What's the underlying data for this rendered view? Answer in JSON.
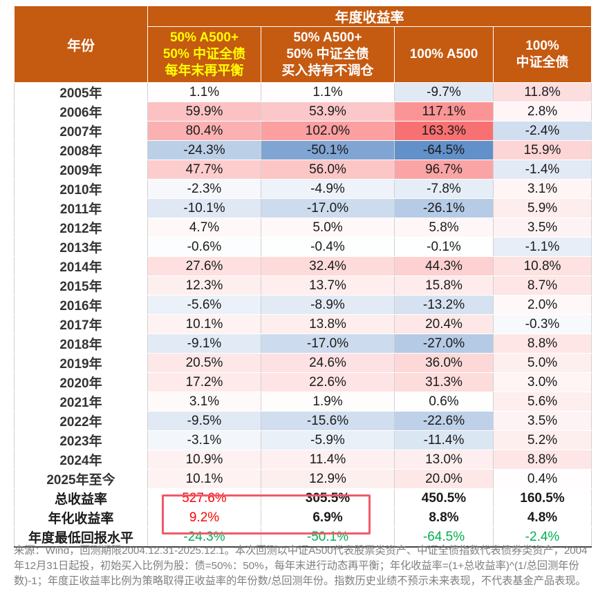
{
  "header": {
    "group_title": "年度收益率",
    "year_col": "年份",
    "columns": [
      {
        "lines": [
          "50% A500+",
          "50% 中证全债",
          "每年末再平衡"
        ]
      },
      {
        "lines": [
          "50% A500+",
          "50% 中证全债",
          "买入持有不调仓"
        ]
      },
      {
        "lines": [
          "100% A500"
        ]
      },
      {
        "lines": [
          "100%",
          "中证全债"
        ]
      }
    ]
  },
  "rows": [
    {
      "year": "2005年",
      "values": [
        "1.1%",
        "1.1%",
        "-9.7%",
        "11.8%"
      ]
    },
    {
      "year": "2006年",
      "values": [
        "59.9%",
        "53.9%",
        "117.1%",
        "2.8%"
      ]
    },
    {
      "year": "2007年",
      "values": [
        "80.4%",
        "102.0%",
        "163.3%",
        "-2.4%"
      ]
    },
    {
      "year": "2008年",
      "values": [
        "-24.3%",
        "-50.1%",
        "-64.5%",
        "15.9%"
      ]
    },
    {
      "year": "2009年",
      "values": [
        "47.7%",
        "56.0%",
        "96.7%",
        "-1.4%"
      ]
    },
    {
      "year": "2010年",
      "values": [
        "-2.3%",
        "-4.9%",
        "-7.8%",
        "3.1%"
      ]
    },
    {
      "year": "2011年",
      "values": [
        "-10.1%",
        "-17.0%",
        "-26.1%",
        "5.9%"
      ]
    },
    {
      "year": "2012年",
      "values": [
        "4.7%",
        "5.0%",
        "5.8%",
        "3.5%"
      ]
    },
    {
      "year": "2013年",
      "values": [
        "-0.6%",
        "-0.4%",
        "-0.1%",
        "-1.1%"
      ]
    },
    {
      "year": "2014年",
      "values": [
        "27.6%",
        "32.4%",
        "44.3%",
        "10.8%"
      ]
    },
    {
      "year": "2015年",
      "values": [
        "12.3%",
        "13.7%",
        "15.8%",
        "8.7%"
      ]
    },
    {
      "year": "2016年",
      "values": [
        "-5.6%",
        "-8.9%",
        "-13.2%",
        "2.0%"
      ]
    },
    {
      "year": "2017年",
      "values": [
        "10.1%",
        "13.8%",
        "20.4%",
        "-0.3%"
      ]
    },
    {
      "year": "2018年",
      "values": [
        "-9.1%",
        "-17.0%",
        "-27.0%",
        "8.8%"
      ]
    },
    {
      "year": "2019年",
      "values": [
        "20.5%",
        "24.6%",
        "36.0%",
        "5.0%"
      ]
    },
    {
      "year": "2020年",
      "values": [
        "17.2%",
        "22.6%",
        "31.3%",
        "3.0%"
      ]
    },
    {
      "year": "2021年",
      "values": [
        "3.1%",
        "1.9%",
        "0.6%",
        "5.6%"
      ]
    },
    {
      "year": "2022年",
      "values": [
        "-9.5%",
        "-15.6%",
        "-22.6%",
        "3.5%"
      ]
    },
    {
      "year": "2023年",
      "values": [
        "-3.1%",
        "-5.9%",
        "-11.4%",
        "5.2%"
      ]
    },
    {
      "year": "2024年",
      "values": [
        "10.9%",
        "11.4%",
        "13.0%",
        "8.8%"
      ]
    },
    {
      "year": "2025年至今",
      "values": [
        "10.1%",
        "12.9%",
        "20.0%",
        "0.4%"
      ]
    }
  ],
  "summary": [
    {
      "label": "总收益率",
      "values": [
        "527.6%",
        "305.5%",
        "450.5%",
        "160.5%"
      ],
      "first_color": "red"
    },
    {
      "label": "年化收益率",
      "values": [
        "9.2%",
        "6.9%",
        "8.8%",
        "4.8%"
      ],
      "first_color": "red"
    },
    {
      "label": "年度最低回报水平",
      "values": [
        "-24.3%",
        "-50.1%",
        "-64.5%",
        "-2.4%"
      ],
      "all_color": "green"
    }
  ],
  "colors": {
    "header_bg": "#c55a11",
    "header_yellow": "#ffff00",
    "positive": "#f8696b",
    "negative": "#5a8ac6",
    "highlight": "#ee5a6a"
  },
  "note": "来源：Wind，回测期限2004.12.31-2025.12.1。本次回测以中证A500代表股票类资产、中证全债指数代表债券类资产，2004年12月31日起投，初始买入比例为股：债=50%：50%，每年末进行动态再平衡；年化收益率=(1+总收益率)^(1/总回测年份数)-1；年度正收益率比例为策略取得正收益率的年份数/总回测年份。指数历史业绩不预示未来表现，不代表基金产品表现。"
}
